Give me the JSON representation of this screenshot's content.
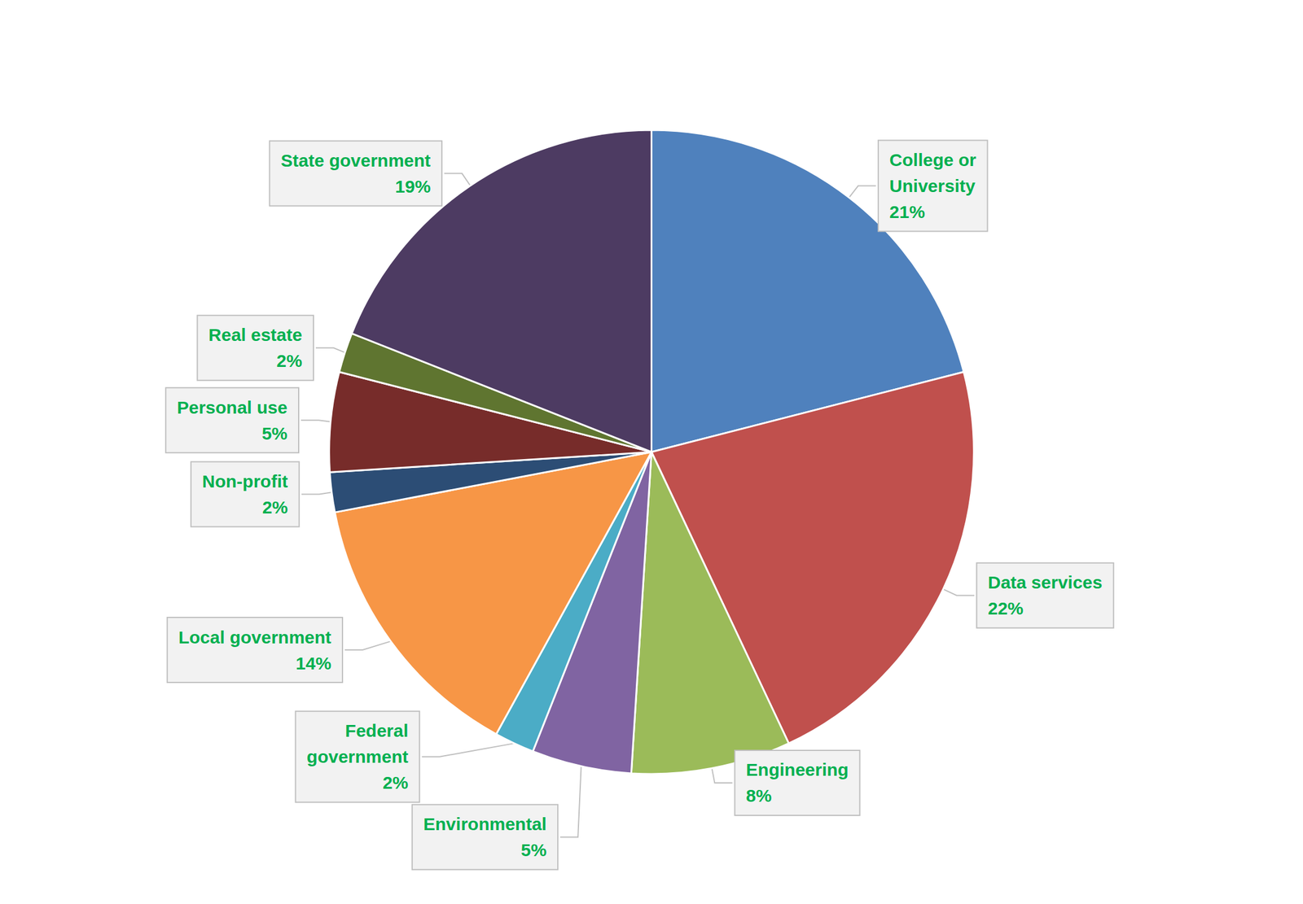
{
  "chart_data": {
    "type": "pie",
    "categories": [
      "College or\nUniversity",
      "Data services",
      "Engineering",
      "Environmental",
      "Federal\ngovernment",
      "Local government",
      "Non-profit",
      "Personal use",
      "Real estate",
      "State government"
    ],
    "values": [
      21,
      22,
      8,
      5,
      2,
      14,
      2,
      5,
      2,
      19
    ],
    "value_labels": [
      "21%",
      "22%",
      "8%",
      "5%",
      "2%",
      "14%",
      "2%",
      "5%",
      "2%",
      "19%"
    ],
    "colors": [
      "#4f81bd",
      "#c0504d",
      "#9bbb59",
      "#8064a2",
      "#4bacc6",
      "#f79646",
      "#2c4d75",
      "#772c2a",
      "#5f7530",
      "#4d3b62"
    ],
    "data_labels": true
  }
}
